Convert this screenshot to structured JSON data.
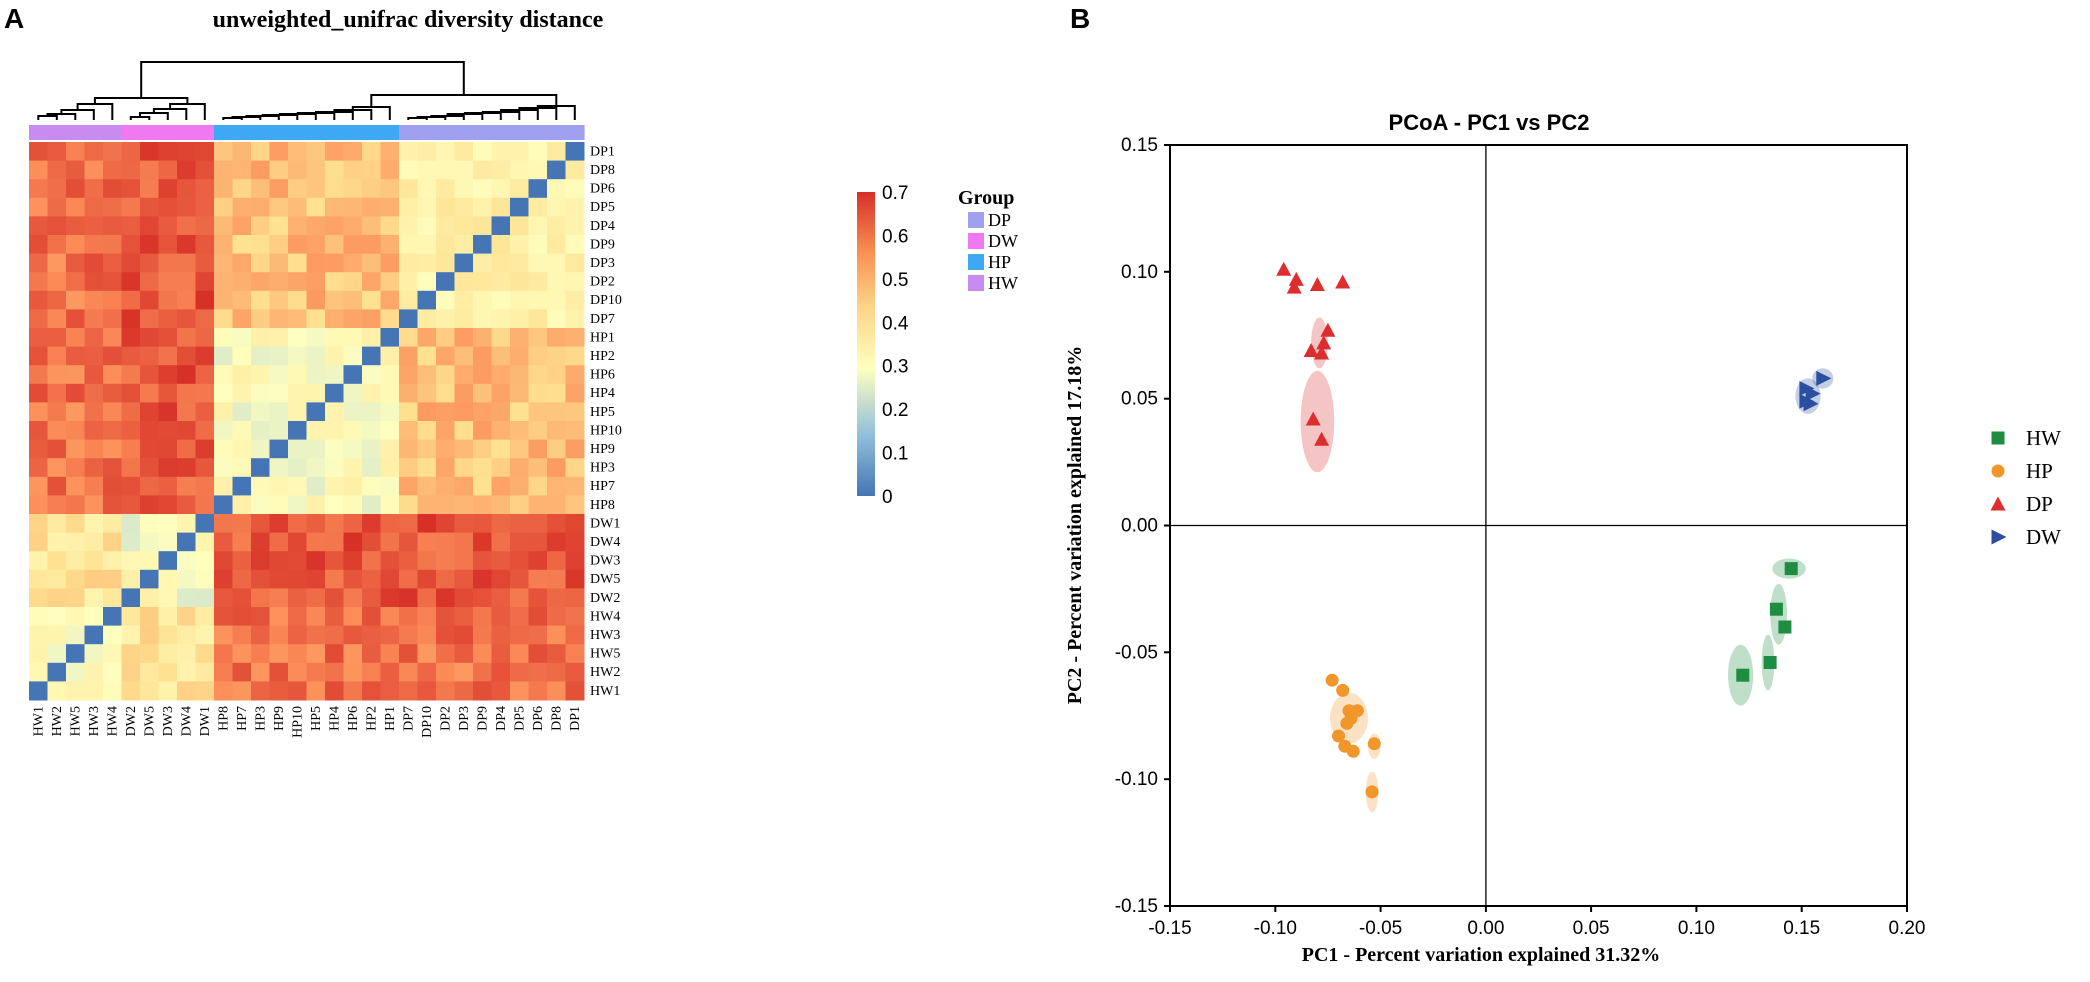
{
  "panels": {
    "a_label": "A",
    "b_label": "B"
  },
  "chart_data": [
    {
      "type": "heatmap",
      "title": "unweighted_unifrac diversity distance",
      "row_labels": [
        "DP1",
        "DP8",
        "DP6",
        "DP5",
        "DP4",
        "DP9",
        "DP3",
        "DP2",
        "DP10",
        "DP7",
        "HP1",
        "HP2",
        "HP6",
        "HP4",
        "HP5",
        "HP10",
        "HP9",
        "HP3",
        "HP7",
        "HP8",
        "DW1",
        "DW4",
        "DW3",
        "DW5",
        "DW2",
        "HW4",
        "HW3",
        "HW5",
        "HW2",
        "HW1"
      ],
      "col_labels": [
        "HW1",
        "HW2",
        "HW5",
        "HW3",
        "HW4",
        "DW2",
        "DW5",
        "DW3",
        "DW4",
        "DW1",
        "HP8",
        "HP7",
        "HP3",
        "HP9",
        "HP10",
        "HP5",
        "HP4",
        "HP6",
        "HP2",
        "HP1",
        "DP7",
        "DP10",
        "DP2",
        "DP3",
        "DP9",
        "DP4",
        "DP5",
        "DP6",
        "DP8",
        "DP1"
      ],
      "group_mean_distance": {
        "HW": {
          "HW": 0.32,
          "DW": 0.4,
          "HP": 0.6,
          "DP": 0.6
        },
        "DW": {
          "HW": 0.4,
          "DW": 0.3,
          "HP": 0.64,
          "DP": 0.64
        },
        "HP": {
          "HW": 0.6,
          "DW": 0.64,
          "HP": 0.3,
          "DP": 0.48
        },
        "DP": {
          "HW": 0.6,
          "DW": 0.64,
          "HP": 0.48,
          "DP": 0.35
        }
      },
      "diagonal": 0,
      "colorbar": {
        "ticks": [
          "0.7",
          "0.6",
          "0.5",
          "0.4",
          "0.3",
          "0.2",
          "0.1",
          "0"
        ],
        "range": [
          0,
          0.7
        ],
        "low_color": "#4575b4",
        "mid_color": "#ffffbf",
        "high_color": "#d73027"
      },
      "group_bar": {
        "title": "Group",
        "groups": [
          {
            "name": "DP",
            "color": "#a0a0f0"
          },
          {
            "name": "DW",
            "color": "#f078f0"
          },
          {
            "name": "HP",
            "color": "#3fa8f4"
          },
          {
            "name": "HW",
            "color": "#c88cf0"
          }
        ],
        "column_groups": [
          "HW",
          "HW",
          "HW",
          "HW",
          "HW",
          "DW",
          "DW",
          "DW",
          "DW",
          "DW",
          "HP",
          "HP",
          "HP",
          "HP",
          "HP",
          "HP",
          "HP",
          "HP",
          "HP",
          "HP",
          "DP",
          "DP",
          "DP",
          "DP",
          "DP",
          "DP",
          "DP",
          "DP",
          "DP",
          "DP"
        ]
      }
    },
    {
      "type": "scatter",
      "title": "PCoA - PC1 vs PC2",
      "xlabel": "PC1 - Percent variation explained 31.32%",
      "ylabel": "PC2 - Percent variation explained 17.18%",
      "xlim": [
        -0.15,
        0.2
      ],
      "ylim": [
        -0.15,
        0.15
      ],
      "xticks": [
        "-0.15",
        "-0.10",
        "-0.05",
        "0.00",
        "0.05",
        "0.10",
        "0.15",
        "0.20"
      ],
      "yticks": [
        "0.15",
        "0.10",
        "0.05",
        "0.00",
        "-0.05",
        "-0.10",
        "-0.15"
      ],
      "series": [
        {
          "name": "HW",
          "color": "#1e8c41",
          "marker": "square",
          "points": [
            [
              0.145,
              -0.017
            ],
            [
              0.138,
              -0.033
            ],
            [
              0.142,
              -0.04
            ],
            [
              0.135,
              -0.054
            ],
            [
              0.122,
              -0.059
            ]
          ],
          "ellipses": [
            [
              0.144,
              -0.017,
              0.008,
              0.004
            ],
            [
              0.139,
              -0.035,
              0.004,
              0.012
            ],
            [
              0.134,
              -0.054,
              0.003,
              0.011
            ],
            [
              0.121,
              -0.059,
              0.006,
              0.012
            ]
          ]
        },
        {
          "name": "HP",
          "color": "#f0962a",
          "marker": "circle",
          "points": [
            [
              -0.073,
              -0.061
            ],
            [
              -0.068,
              -0.065
            ],
            [
              -0.065,
              -0.073
            ],
            [
              -0.066,
              -0.078
            ],
            [
              -0.061,
              -0.073
            ],
            [
              -0.064,
              -0.076
            ],
            [
              -0.07,
              -0.083
            ],
            [
              -0.067,
              -0.087
            ],
            [
              -0.063,
              -0.089
            ],
            [
              -0.053,
              -0.086
            ],
            [
              -0.054,
              -0.105
            ]
          ],
          "ellipses": [
            [
              -0.065,
              -0.076,
              0.009,
              0.01
            ],
            [
              -0.053,
              -0.087,
              0.003,
              0.005
            ],
            [
              -0.054,
              -0.105,
              0.003,
              0.008
            ]
          ]
        },
        {
          "name": "DP",
          "color": "#dc2e2e",
          "marker": "triangle",
          "points": [
            [
              -0.096,
              0.101
            ],
            [
              -0.09,
              0.097
            ],
            [
              -0.091,
              0.094
            ],
            [
              -0.08,
              0.095
            ],
            [
              -0.068,
              0.096
            ],
            [
              -0.075,
              0.077
            ],
            [
              -0.077,
              0.072
            ],
            [
              -0.083,
              0.069
            ],
            [
              -0.078,
              0.068
            ],
            [
              -0.082,
              0.042
            ],
            [
              -0.078,
              0.034
            ]
          ],
          "ellipses": [
            [
              -0.08,
              0.041,
              0.008,
              0.02
            ],
            [
              -0.079,
              0.072,
              0.004,
              0.01
            ]
          ]
        },
        {
          "name": "DW",
          "color": "#2c4ea0",
          "marker": "triangle-right",
          "points": [
            [
              0.16,
              0.058
            ],
            [
              0.152,
              0.054
            ],
            [
              0.155,
              0.052
            ],
            [
              0.152,
              0.049
            ],
            [
              0.154,
              0.048
            ]
          ],
          "ellipses": [
            [
              0.16,
              0.058,
              0.005,
              0.004
            ],
            [
              0.153,
              0.051,
              0.006,
              0.007
            ]
          ]
        }
      ]
    }
  ]
}
